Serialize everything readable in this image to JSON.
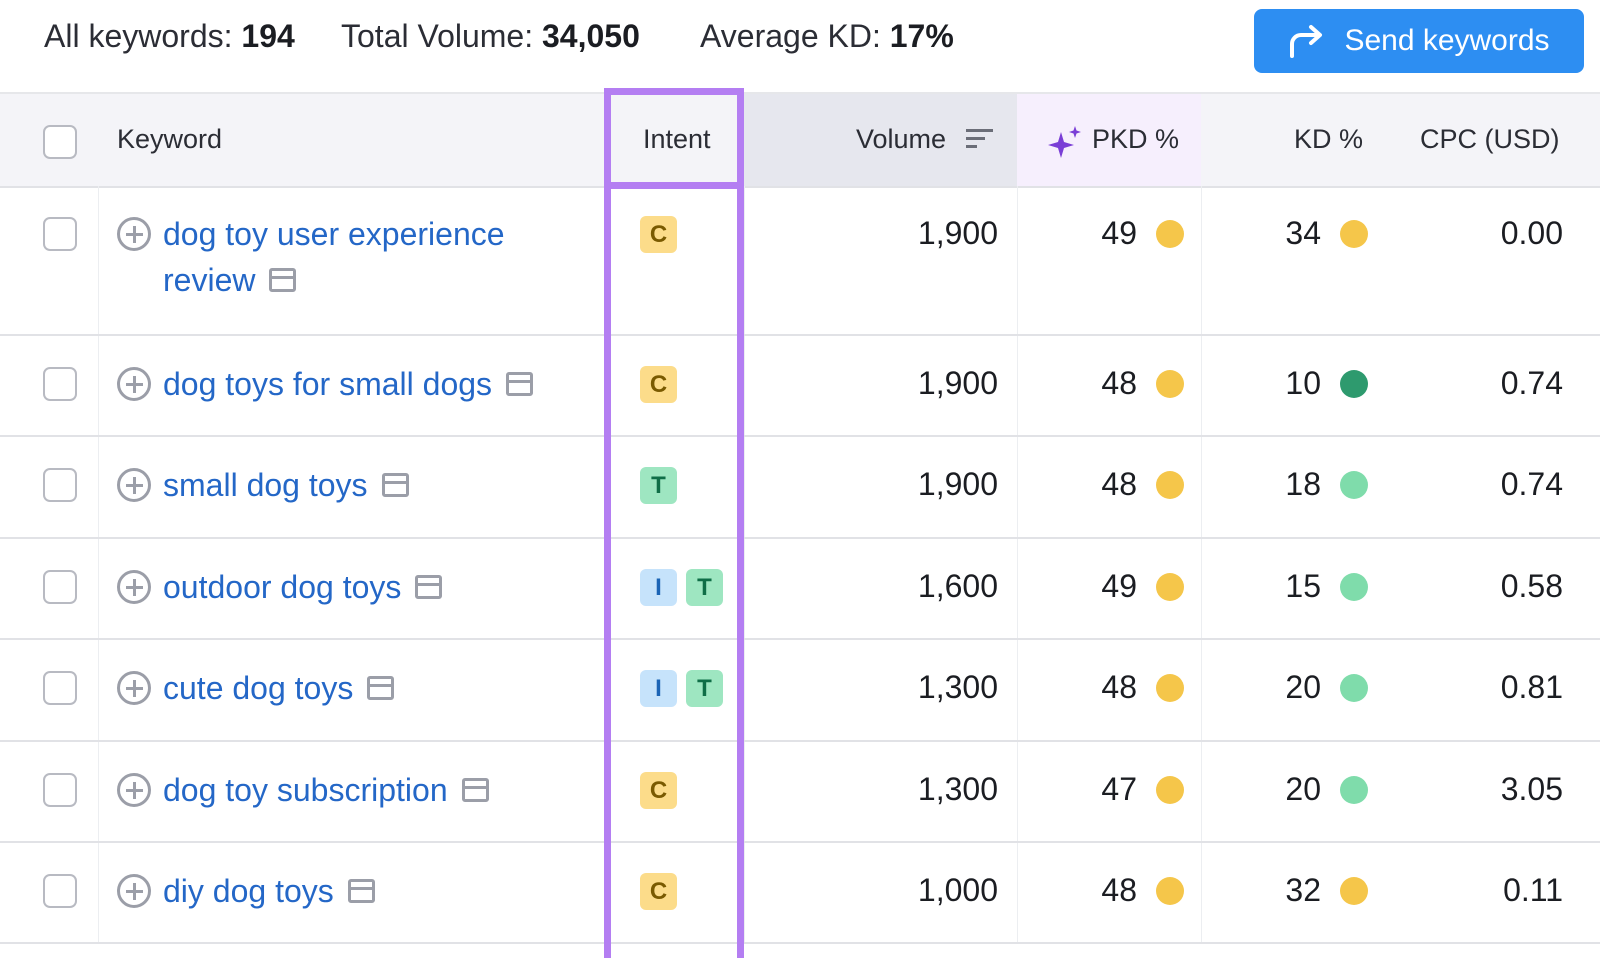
{
  "summary": {
    "all_keywords_label": "All keywords:",
    "all_keywords_value": "194",
    "total_volume_label": "Total Volume:",
    "total_volume_value": "34,050",
    "average_kd_label": "Average KD:",
    "average_kd_value": "17%"
  },
  "send_button": {
    "label": "Send keywords",
    "icon": "share-arrow-icon",
    "color": "#2d8ef2"
  },
  "columns": {
    "keyword": "Keyword",
    "intent": "Intent",
    "volume": "Volume",
    "pkd": "PKD %",
    "kd": "KD %",
    "cpc": "CPC (USD)"
  },
  "colors": {
    "highlight": "#b47ef2",
    "link": "#2467c7",
    "dot_yellow": "#f5c64a",
    "dot_dark_green": "#2e9a6e",
    "dot_light_green": "#7fdcab"
  },
  "rows": [
    {
      "keyword_line1": "dog toy user experience",
      "keyword_line2": "review",
      "intent": [
        "C"
      ],
      "volume": "1,900",
      "pkd": "49",
      "pkd_color": "#f5c64a",
      "kd": "34",
      "kd_color": "#f5c64a",
      "cpc": "0.00"
    },
    {
      "keyword_line1": "dog toys for small dogs",
      "keyword_line2": "",
      "intent": [
        "C"
      ],
      "volume": "1,900",
      "pkd": "48",
      "pkd_color": "#f5c64a",
      "kd": "10",
      "kd_color": "#2e9a6e",
      "cpc": "0.74"
    },
    {
      "keyword_line1": "small dog toys",
      "keyword_line2": "",
      "intent": [
        "T"
      ],
      "volume": "1,900",
      "pkd": "48",
      "pkd_color": "#f5c64a",
      "kd": "18",
      "kd_color": "#7fdcab",
      "cpc": "0.74"
    },
    {
      "keyword_line1": "outdoor dog toys",
      "keyword_line2": "",
      "intent": [
        "I",
        "T"
      ],
      "volume": "1,600",
      "pkd": "49",
      "pkd_color": "#f5c64a",
      "kd": "15",
      "kd_color": "#7fdcab",
      "cpc": "0.58"
    },
    {
      "keyword_line1": "cute dog toys",
      "keyword_line2": "",
      "intent": [
        "I",
        "T"
      ],
      "volume": "1,300",
      "pkd": "48",
      "pkd_color": "#f5c64a",
      "kd": "20",
      "kd_color": "#7fdcab",
      "cpc": "0.81"
    },
    {
      "keyword_line1": "dog toy subscription",
      "keyword_line2": "",
      "intent": [
        "C"
      ],
      "volume": "1,300",
      "pkd": "47",
      "pkd_color": "#f5c64a",
      "kd": "20",
      "kd_color": "#7fdcab",
      "cpc": "3.05"
    },
    {
      "keyword_line1": "diy dog toys",
      "keyword_line2": "",
      "intent": [
        "C"
      ],
      "volume": "1,000",
      "pkd": "48",
      "pkd_color": "#f5c64a",
      "kd": "32",
      "kd_color": "#f5c64a",
      "cpc": "0.11"
    }
  ]
}
